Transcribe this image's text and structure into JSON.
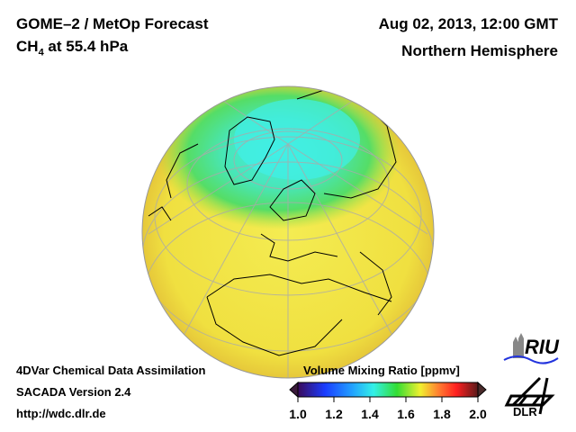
{
  "header": {
    "title": "GOME–2 / MetOp Forecast",
    "species": "CH",
    "species_sub": "4",
    "level": " at 55.4 hPa",
    "date": "Aug 02, 2013, 12:00 GMT",
    "region": "Northern Hemisphere"
  },
  "footer": {
    "line1": "4DVar Chemical Data Assimilation",
    "line2": "SACADA Version 2.4",
    "line3": "http://wdc.dlr.de"
  },
  "colorbar": {
    "title": "Volume Mixing Ratio [ppmv]",
    "ticks": [
      "1.0",
      "1.2",
      "1.4",
      "1.6",
      "1.8",
      "2.0"
    ],
    "min": 1.0,
    "max": 2.0,
    "colors": [
      "#3a0a5a",
      "#1a3cff",
      "#22a0ff",
      "#33f0e8",
      "#33dd33",
      "#f0f030",
      "#ff8030",
      "#ff2020",
      "#5a1a1a"
    ]
  },
  "logos": {
    "riu": "RIU",
    "dlr": "DLR"
  }
}
